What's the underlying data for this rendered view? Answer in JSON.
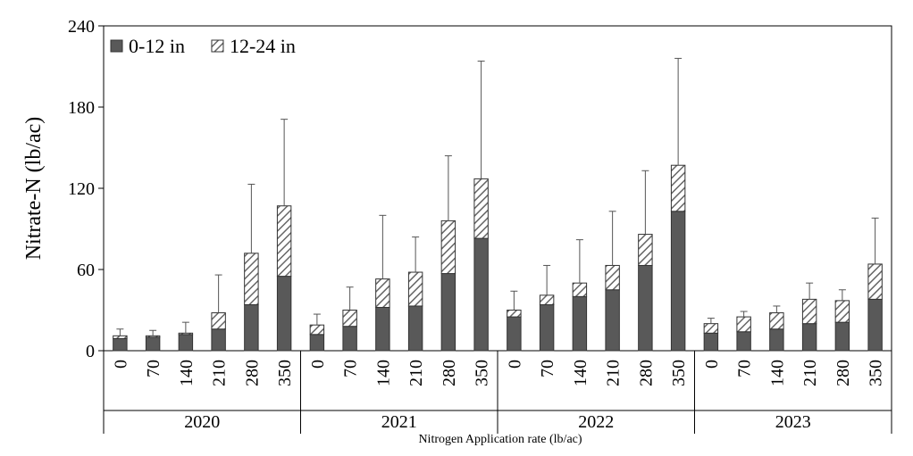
{
  "chart_data": {
    "type": "stacked_bar_error",
    "ylabel": "Nitrate-N (lb/ac)",
    "xlabel": "Nitrogen Application rate (lb/ac)",
    "categories": [
      "0",
      "70",
      "140",
      "210",
      "280",
      "350",
      "0",
      "70",
      "140",
      "210",
      "280",
      "350",
      "0",
      "70",
      "140",
      "210",
      "280",
      "350",
      "0",
      "70",
      "140",
      "210",
      "280",
      "350"
    ],
    "groups": [
      "2020",
      "2021",
      "2022",
      "2023"
    ],
    "series": [
      {
        "name": "0-12 in",
        "color": "#595959",
        "values": [
          9,
          10,
          12,
          16,
          34,
          55,
          12,
          18,
          32,
          33,
          57,
          83,
          25,
          34,
          40,
          45,
          63,
          103,
          13,
          14,
          16,
          20,
          21,
          38
        ]
      },
      {
        "name": "12-24 in",
        "color": "#ffffff",
        "hatch": true,
        "values": [
          2,
          1,
          1,
          12,
          38,
          52,
          7,
          12,
          21,
          25,
          39,
          44,
          5,
          7,
          10,
          18,
          23,
          34,
          7,
          11,
          12,
          18,
          16,
          26
        ]
      }
    ],
    "errors": [
      5,
      4,
      8,
      28,
      51,
      64,
      8,
      17,
      47,
      26,
      48,
      87,
      14,
      22,
      32,
      40,
      47,
      79,
      4,
      4,
      5,
      12,
      8,
      34
    ],
    "ylim": [
      0,
      240
    ],
    "yticks": [
      0,
      60,
      120,
      180,
      240
    ],
    "legend": "top-left"
  }
}
